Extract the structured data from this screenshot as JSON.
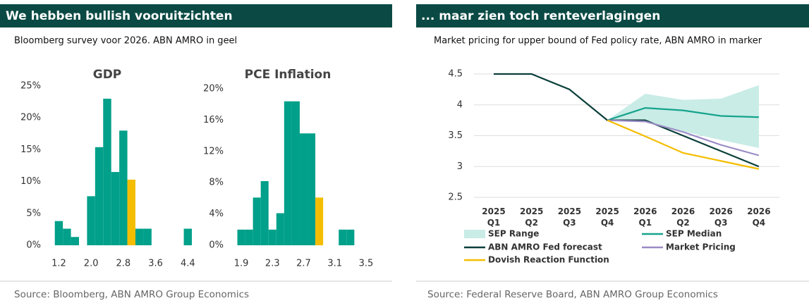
{
  "left": {
    "header": "We hebben bullish vooruitzichten",
    "subtitle": "Bloomberg survey voor 2026. ABN AMRO in geel",
    "source": "Source: Bloomberg, ABN AMRO Group Economics"
  },
  "right": {
    "header": "... maar zien toch renteverlagingen",
    "subtitle": "Market pricing for upper bound of Fed policy rate, ABN AMRO in marker",
    "source": "Source: Federal Reserve Board, ABN AMRO Group Economics"
  },
  "chart_data": [
    {
      "type": "histogram",
      "title": "GDP",
      "bins": [
        1.1,
        1.3,
        1.5,
        1.7,
        1.9,
        2.1,
        2.3,
        2.5,
        2.7,
        2.9,
        3.1,
        3.3,
        3.5,
        3.7,
        3.9,
        4.1,
        4.3,
        4.5
      ],
      "values": [
        3.8,
        2.6,
        1.3,
        0,
        7.7,
        15.4,
        23,
        11.5,
        18,
        10.3,
        2.6,
        2.6,
        0,
        0,
        0,
        0,
        2.6
      ],
      "colors": [
        "#00a08a",
        "#00a08a",
        "#00a08a",
        "#00a08a",
        "#00a08a",
        "#00a08a",
        "#00a08a",
        "#00a08a",
        "#00a08a",
        "#f5bd00",
        "#00a08a",
        "#00a08a",
        "#00a08a",
        "#00a08a",
        "#00a08a",
        "#00a08a",
        "#00a08a"
      ],
      "xlim": [
        1.0,
        4.5
      ],
      "xticks": [
        1.2,
        {
          "value": 2,
          "label": "2.0"
        },
        2.8,
        3.6,
        4.4
      ],
      "ylim": [
        0,
        25
      ],
      "yticks": [
        {
          "value": 0,
          "label": "0%"
        },
        {
          "value": 5,
          "label": "5%"
        },
        {
          "value": 10,
          "label": "10%"
        },
        {
          "value": 15,
          "label": "15%"
        },
        {
          "value": 20,
          "label": "20%"
        },
        {
          "value": 25,
          "label": "25%"
        }
      ]
    },
    {
      "type": "histogram",
      "title": "PCE Inflation",
      "bins": [
        1.85,
        1.95,
        2.05,
        2.15,
        2.25,
        2.35,
        2.45,
        2.55,
        2.65,
        2.75,
        2.85,
        2.95,
        3.05,
        3.15,
        3.25,
        3.35
      ],
      "values": [
        2,
        2,
        6.1,
        8.2,
        2,
        4.1,
        18.4,
        18.4,
        14.3,
        14.3,
        6.1,
        0,
        0,
        2,
        2
      ],
      "colors": [
        "#00a08a",
        "#00a08a",
        "#00a08a",
        "#00a08a",
        "#00a08a",
        "#00a08a",
        "#00a08a",
        "#00a08a",
        "#00a08a",
        "#00a08a",
        "#f5bd00",
        "#00a08a",
        "#00a08a",
        "#00a08a",
        "#00a08a"
      ],
      "xlim": [
        1.8,
        3.6
      ],
      "xticks": [
        1.9,
        2.3,
        2.7,
        3.1,
        3.5
      ],
      "ylim": [
        0,
        20
      ],
      "yticks": [
        {
          "value": 0,
          "label": "0%"
        },
        {
          "value": 4,
          "label": "4%"
        },
        {
          "value": 8,
          "label": "8%"
        },
        {
          "value": 12,
          "label": "12%"
        },
        {
          "value": 16,
          "label": "16%"
        },
        {
          "value": 20,
          "label": "20%"
        }
      ]
    },
    {
      "type": "line",
      "categories": [
        "2025 Q1",
        "2025 Q2",
        "2025 Q3",
        "2025 Q4",
        "2026 Q1",
        "2026 Q2",
        "2026 Q3",
        "2026 Q4"
      ],
      "ylim": [
        2.5,
        4.5
      ],
      "yticks": [
        2.5,
        3,
        3.5,
        4,
        4.5
      ],
      "grid": true,
      "range": {
        "name": "SEP Range",
        "color": "#c9ece6",
        "low": [
          null,
          null,
          null,
          3.75,
          3.72,
          3.57,
          3.43,
          3.3
        ],
        "high": [
          null,
          null,
          null,
          3.75,
          4.18,
          4.08,
          4.1,
          4.32
        ]
      },
      "series": [
        {
          "name": "SEP Median",
          "color": "#16a38c",
          "values": [
            null,
            null,
            null,
            3.75,
            3.95,
            3.91,
            3.82,
            3.8
          ]
        },
        {
          "name": "ABN AMRO Fed forecast",
          "color": "#0b3f3a",
          "values": [
            4.5,
            4.5,
            4.25,
            3.75,
            3.75,
            3.5,
            3.25,
            3.0
          ]
        },
        {
          "name": "Market Pricing",
          "color": "#9a8bc6",
          "values": [
            null,
            null,
            null,
            3.75,
            3.73,
            3.56,
            3.35,
            3.18
          ]
        },
        {
          "name": "Dovish Reaction Function",
          "color": "#f5bd00",
          "values": [
            null,
            null,
            null,
            3.75,
            3.49,
            3.22,
            3.09,
            2.96
          ]
        }
      ]
    }
  ]
}
